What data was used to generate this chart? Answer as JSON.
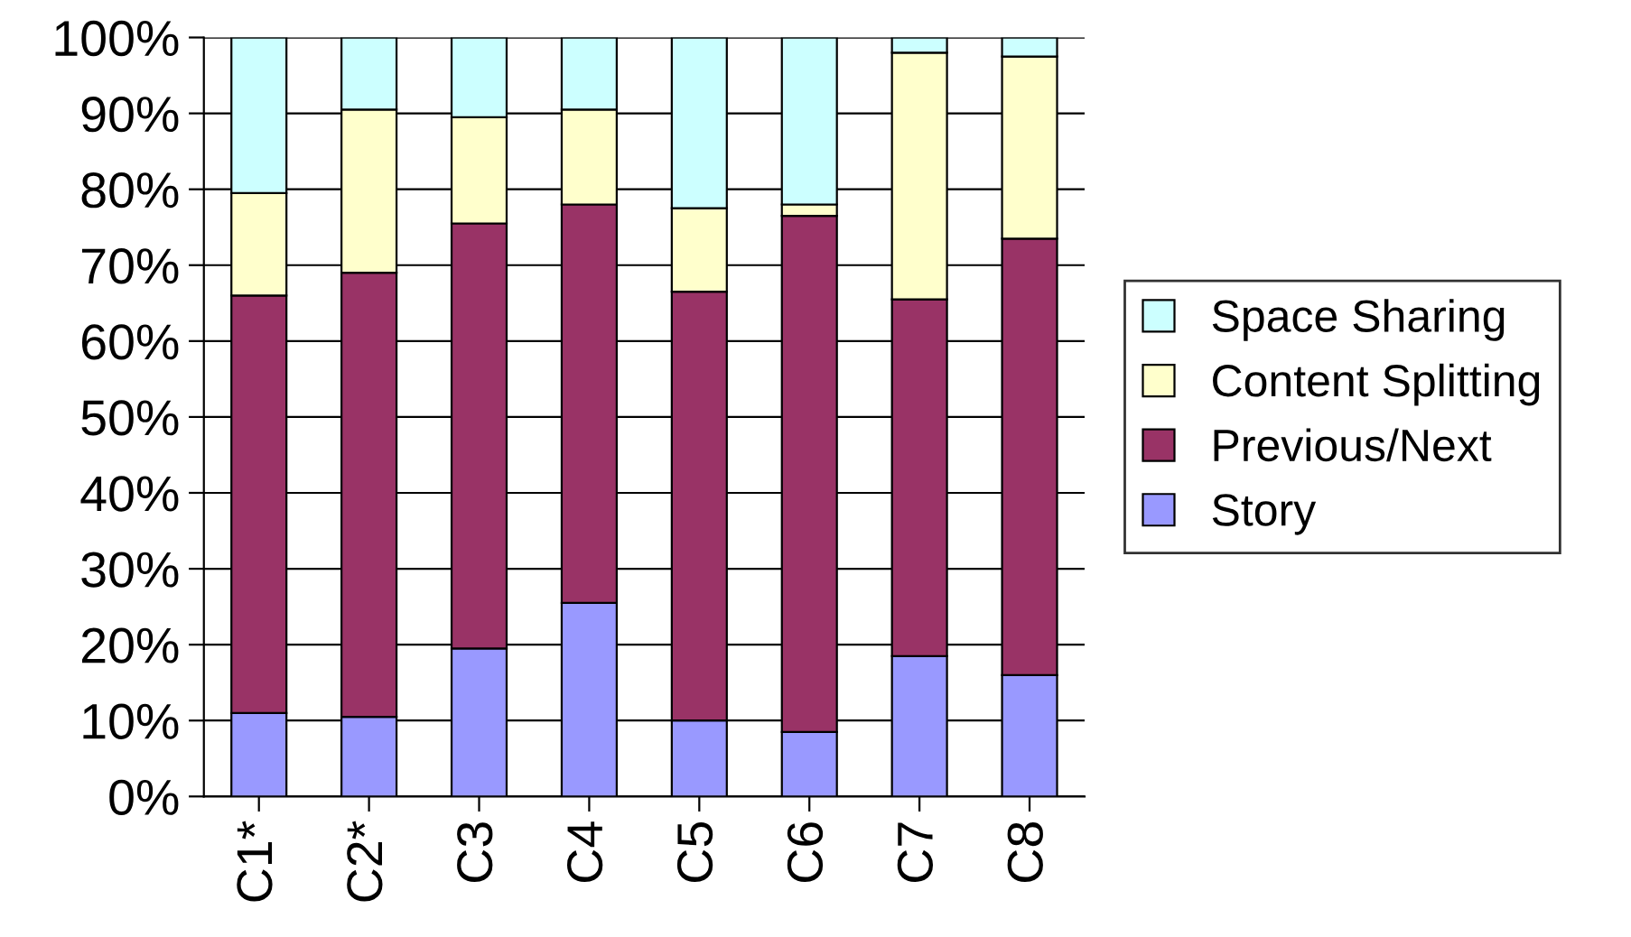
{
  "chart_data": {
    "type": "bar",
    "stacked": true,
    "categories": [
      "C1*",
      "C2*",
      "C3",
      "C4",
      "C5",
      "C6",
      "C7",
      "C8"
    ],
    "series": [
      {
        "name": "Story",
        "color": "#9999ff",
        "values": [
          11,
          10.5,
          19.5,
          25.5,
          10,
          8.5,
          18.5,
          16
        ]
      },
      {
        "name": "Previous/Next",
        "color": "#993366",
        "values": [
          55,
          58.5,
          56,
          52.5,
          56.5,
          68,
          47,
          57.5
        ]
      },
      {
        "name": "Content Splitting",
        "color": "#ffffcc",
        "values": [
          13.5,
          21.5,
          14,
          12.5,
          11,
          1.5,
          32.5,
          24
        ]
      },
      {
        "name": "Space Sharing",
        "color": "#ccffff",
        "values": [
          20.5,
          9.5,
          10.5,
          9.5,
          22.5,
          22,
          2,
          2.5
        ]
      }
    ],
    "ylim": [
      0,
      100
    ],
    "yticks": [
      {
        "value": 0,
        "label": "0%"
      },
      {
        "value": 10,
        "label": "10%"
      },
      {
        "value": 20,
        "label": "20%"
      },
      {
        "value": 30,
        "label": "30%"
      },
      {
        "value": 40,
        "label": "40%"
      },
      {
        "value": 50,
        "label": "50%"
      },
      {
        "value": 60,
        "label": "60%"
      },
      {
        "value": 70,
        "label": "70%"
      },
      {
        "value": 80,
        "label": "80%"
      },
      {
        "value": 90,
        "label": "90%"
      },
      {
        "value": 100,
        "label": "100%"
      }
    ],
    "grid": "y",
    "legend": "right"
  }
}
